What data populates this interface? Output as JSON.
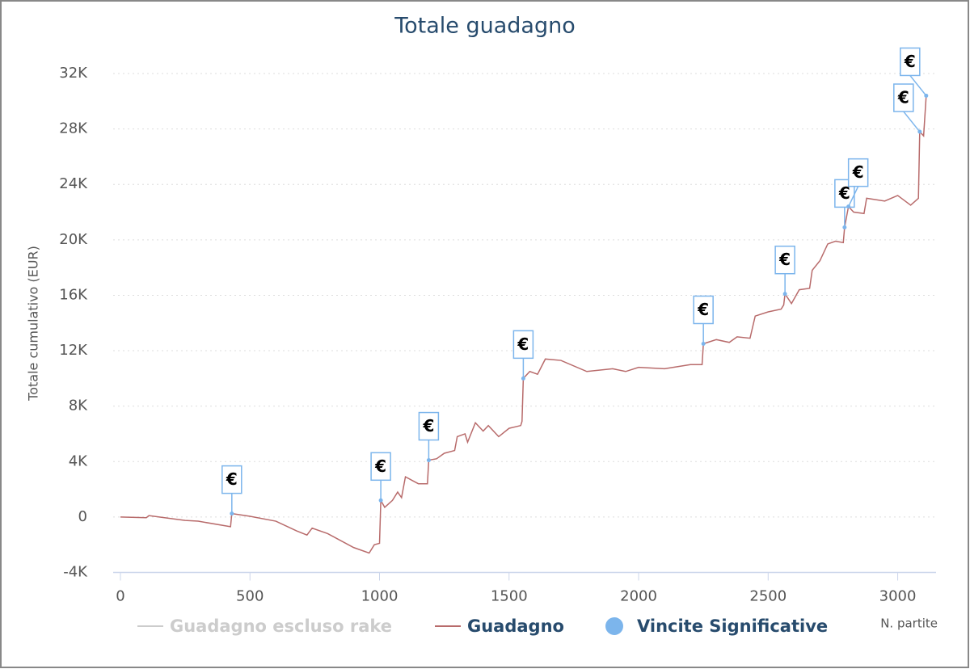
{
  "chart_data": {
    "type": "line",
    "title": "Totale guadagno",
    "x_label": "N. partite",
    "y_label": "Totale cumulativo (EUR)",
    "xlim": [
      -28,
      3148
    ],
    "xticks": [
      0,
      500,
      1000,
      1500,
      2000,
      2500,
      3000
    ],
    "ylim": [
      -4000,
      32000
    ],
    "yticks": [
      {
        "value": -4000,
        "label": "-4K"
      },
      0,
      {
        "value": 4000,
        "label": "4K"
      },
      {
        "value": 8000,
        "label": "8K"
      },
      {
        "value": 12000,
        "label": "12K"
      },
      {
        "value": 16000,
        "label": "16K"
      },
      {
        "value": 20000,
        "label": "20K"
      },
      {
        "value": 24000,
        "label": "24K"
      },
      {
        "value": 28000,
        "label": "28K"
      },
      {
        "value": 32000,
        "label": "32K"
      }
    ],
    "grid": true,
    "legend": "bottom",
    "series": [
      {
        "name": "Guadagno escluso rake",
        "color": "#cccccc",
        "visible": false,
        "x": [],
        "values": []
      },
      {
        "name": "Guadagno",
        "color": "#b86b6b",
        "visible": true,
        "x": [
          0,
          100,
          110,
          150,
          250,
          300,
          425,
          430,
          500,
          600,
          680,
          720,
          740,
          800,
          900,
          960,
          980,
          1000,
          1005,
          1020,
          1050,
          1070,
          1085,
          1100,
          1130,
          1150,
          1185,
          1190,
          1220,
          1250,
          1290,
          1300,
          1330,
          1340,
          1370,
          1400,
          1420,
          1460,
          1500,
          1545,
          1550,
          1555,
          1580,
          1610,
          1640,
          1700,
          1800,
          1900,
          1950,
          2000,
          2100,
          2200,
          2245,
          2250,
          2300,
          2350,
          2380,
          2430,
          2450,
          2500,
          2550,
          2560,
          2565,
          2590,
          2620,
          2660,
          2670,
          2700,
          2730,
          2760,
          2790,
          2795,
          2810,
          2830,
          2870,
          2880,
          2950,
          3000,
          3050,
          3080,
          3085,
          3100,
          3110
        ],
        "values": [
          0,
          -50,
          100,
          0,
          -250,
          -300,
          -700,
          250,
          50,
          -300,
          -1000,
          -1300,
          -800,
          -1200,
          -2200,
          -2600,
          -2000,
          -1900,
          1200,
          700,
          1200,
          1800,
          1400,
          2900,
          2600,
          2400,
          2400,
          4100,
          4200,
          4600,
          4800,
          5800,
          6000,
          5400,
          6800,
          6200,
          6600,
          5800,
          6400,
          6600,
          6900,
          10000,
          10500,
          10300,
          11400,
          11300,
          10500,
          10700,
          10500,
          10800,
          10700,
          11000,
          11000,
          12500,
          12800,
          12600,
          13000,
          12900,
          14500,
          14800,
          15000,
          15300,
          16100,
          15400,
          16400,
          16500,
          17800,
          18500,
          19700,
          19900,
          19800,
          20900,
          22400,
          22000,
          21900,
          23000,
          22800,
          23200,
          22500,
          23000,
          27800,
          27500,
          30400
        ]
      },
      {
        "name": "Vincite Significative",
        "color": "#7cb5ec",
        "visible": true,
        "flag_label": "€",
        "x": [
          430,
          1005,
          1190,
          1555,
          2250,
          2565,
          2795,
          2810,
          3085,
          3110
        ],
        "values": [
          250,
          1200,
          4100,
          10000,
          12500,
          16100,
          20900,
          22400,
          27800,
          30400
        ]
      }
    ]
  }
}
